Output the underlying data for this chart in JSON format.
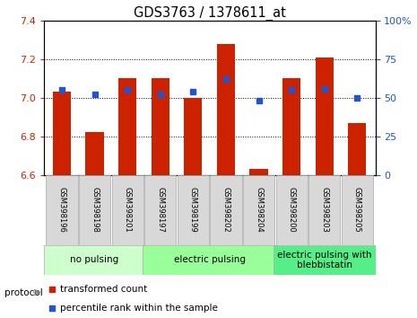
{
  "title": "GDS3763 / 1378611_at",
  "samples": [
    "GSM398196",
    "GSM398198",
    "GSM398201",
    "GSM398197",
    "GSM398199",
    "GSM398202",
    "GSM398204",
    "GSM398200",
    "GSM398203",
    "GSM398205"
  ],
  "transformed_count": [
    7.03,
    6.82,
    7.1,
    7.1,
    7.0,
    7.28,
    6.63,
    7.1,
    7.21,
    6.87
  ],
  "percentile_rank": [
    55,
    52,
    55,
    52,
    54,
    62,
    48,
    55,
    56,
    50
  ],
  "ylim_left": [
    6.6,
    7.4
  ],
  "ylim_right": [
    0,
    100
  ],
  "yticks_left": [
    6.6,
    6.8,
    7.0,
    7.2,
    7.4
  ],
  "yticks_right": [
    0,
    25,
    50,
    75,
    100
  ],
  "bar_color": "#cc2200",
  "dot_color": "#2255cc",
  "bg_color": "#ffffff",
  "tick_label_color_left": "#cc2200",
  "tick_label_color_right": "#2255cc",
  "groups": [
    {
      "label": "no pulsing",
      "start": 0,
      "end": 3,
      "color": "#ccffcc"
    },
    {
      "label": "electric pulsing",
      "start": 3,
      "end": 7,
      "color": "#99ff99"
    },
    {
      "label": "electric pulsing with\nblebbistatin",
      "start": 7,
      "end": 10,
      "color": "#55ee88"
    }
  ],
  "protocol_label": "protocol",
  "legend_items": [
    {
      "color": "#cc2200",
      "marker": "s",
      "label": "transformed count"
    },
    {
      "color": "#2255cc",
      "marker": "s",
      "label": "percentile rank within the sample"
    }
  ],
  "bar_width": 0.55,
  "title_fontsize": 10.5,
  "tick_fontsize": 8,
  "sample_fontsize": 6,
  "group_label_fontsize": 7.5,
  "legend_fontsize": 7.5
}
